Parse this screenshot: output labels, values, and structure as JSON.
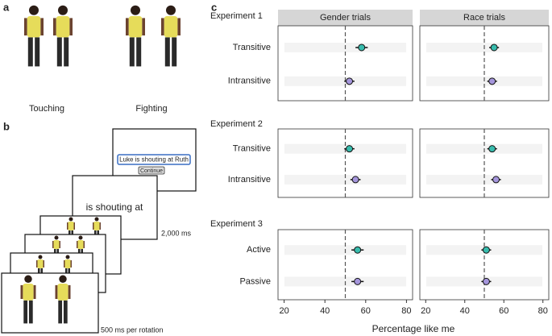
{
  "panel_a": {
    "label": "a",
    "captions": [
      "Touching",
      "Fighting"
    ]
  },
  "panel_b": {
    "label": "b",
    "sentence": "Luke is shouting at Ruth",
    "button": "Continue",
    "verb": "is shouting at",
    "verb_duration": "2,000 ms",
    "rotation": "500 ms per rotation"
  },
  "chart_data": {
    "type": "dot",
    "label": "c",
    "facets": [
      "Gender trials",
      "Race trials"
    ],
    "xlabel": "Percentage like me",
    "xlim": [
      17,
      83
    ],
    "xticks": [
      20,
      40,
      60,
      80
    ],
    "reference": 50,
    "colors": [
      "#38bcad",
      "#a596dc"
    ],
    "groups": [
      {
        "name": "Experiment 1",
        "categories": [
          "Transitive",
          "Intransitive"
        ],
        "values": [
          [
            58,
            52
          ],
          [
            55,
            54
          ]
        ],
        "errors": [
          [
            3,
            2.5
          ],
          [
            2.5,
            2.5
          ]
        ]
      },
      {
        "name": "Experiment 2",
        "categories": [
          "Transitive",
          "Intransitive"
        ],
        "values": [
          [
            52,
            55
          ],
          [
            54,
            56
          ]
        ],
        "errors": [
          [
            2.5,
            2.5
          ],
          [
            2.5,
            2.5
          ]
        ]
      },
      {
        "name": "Experiment 3",
        "categories": [
          "Active",
          "Passive"
        ],
        "values": [
          [
            56,
            56
          ],
          [
            51,
            51
          ]
        ],
        "errors": [
          [
            3,
            3
          ],
          [
            2.5,
            2.5
          ]
        ]
      }
    ]
  }
}
